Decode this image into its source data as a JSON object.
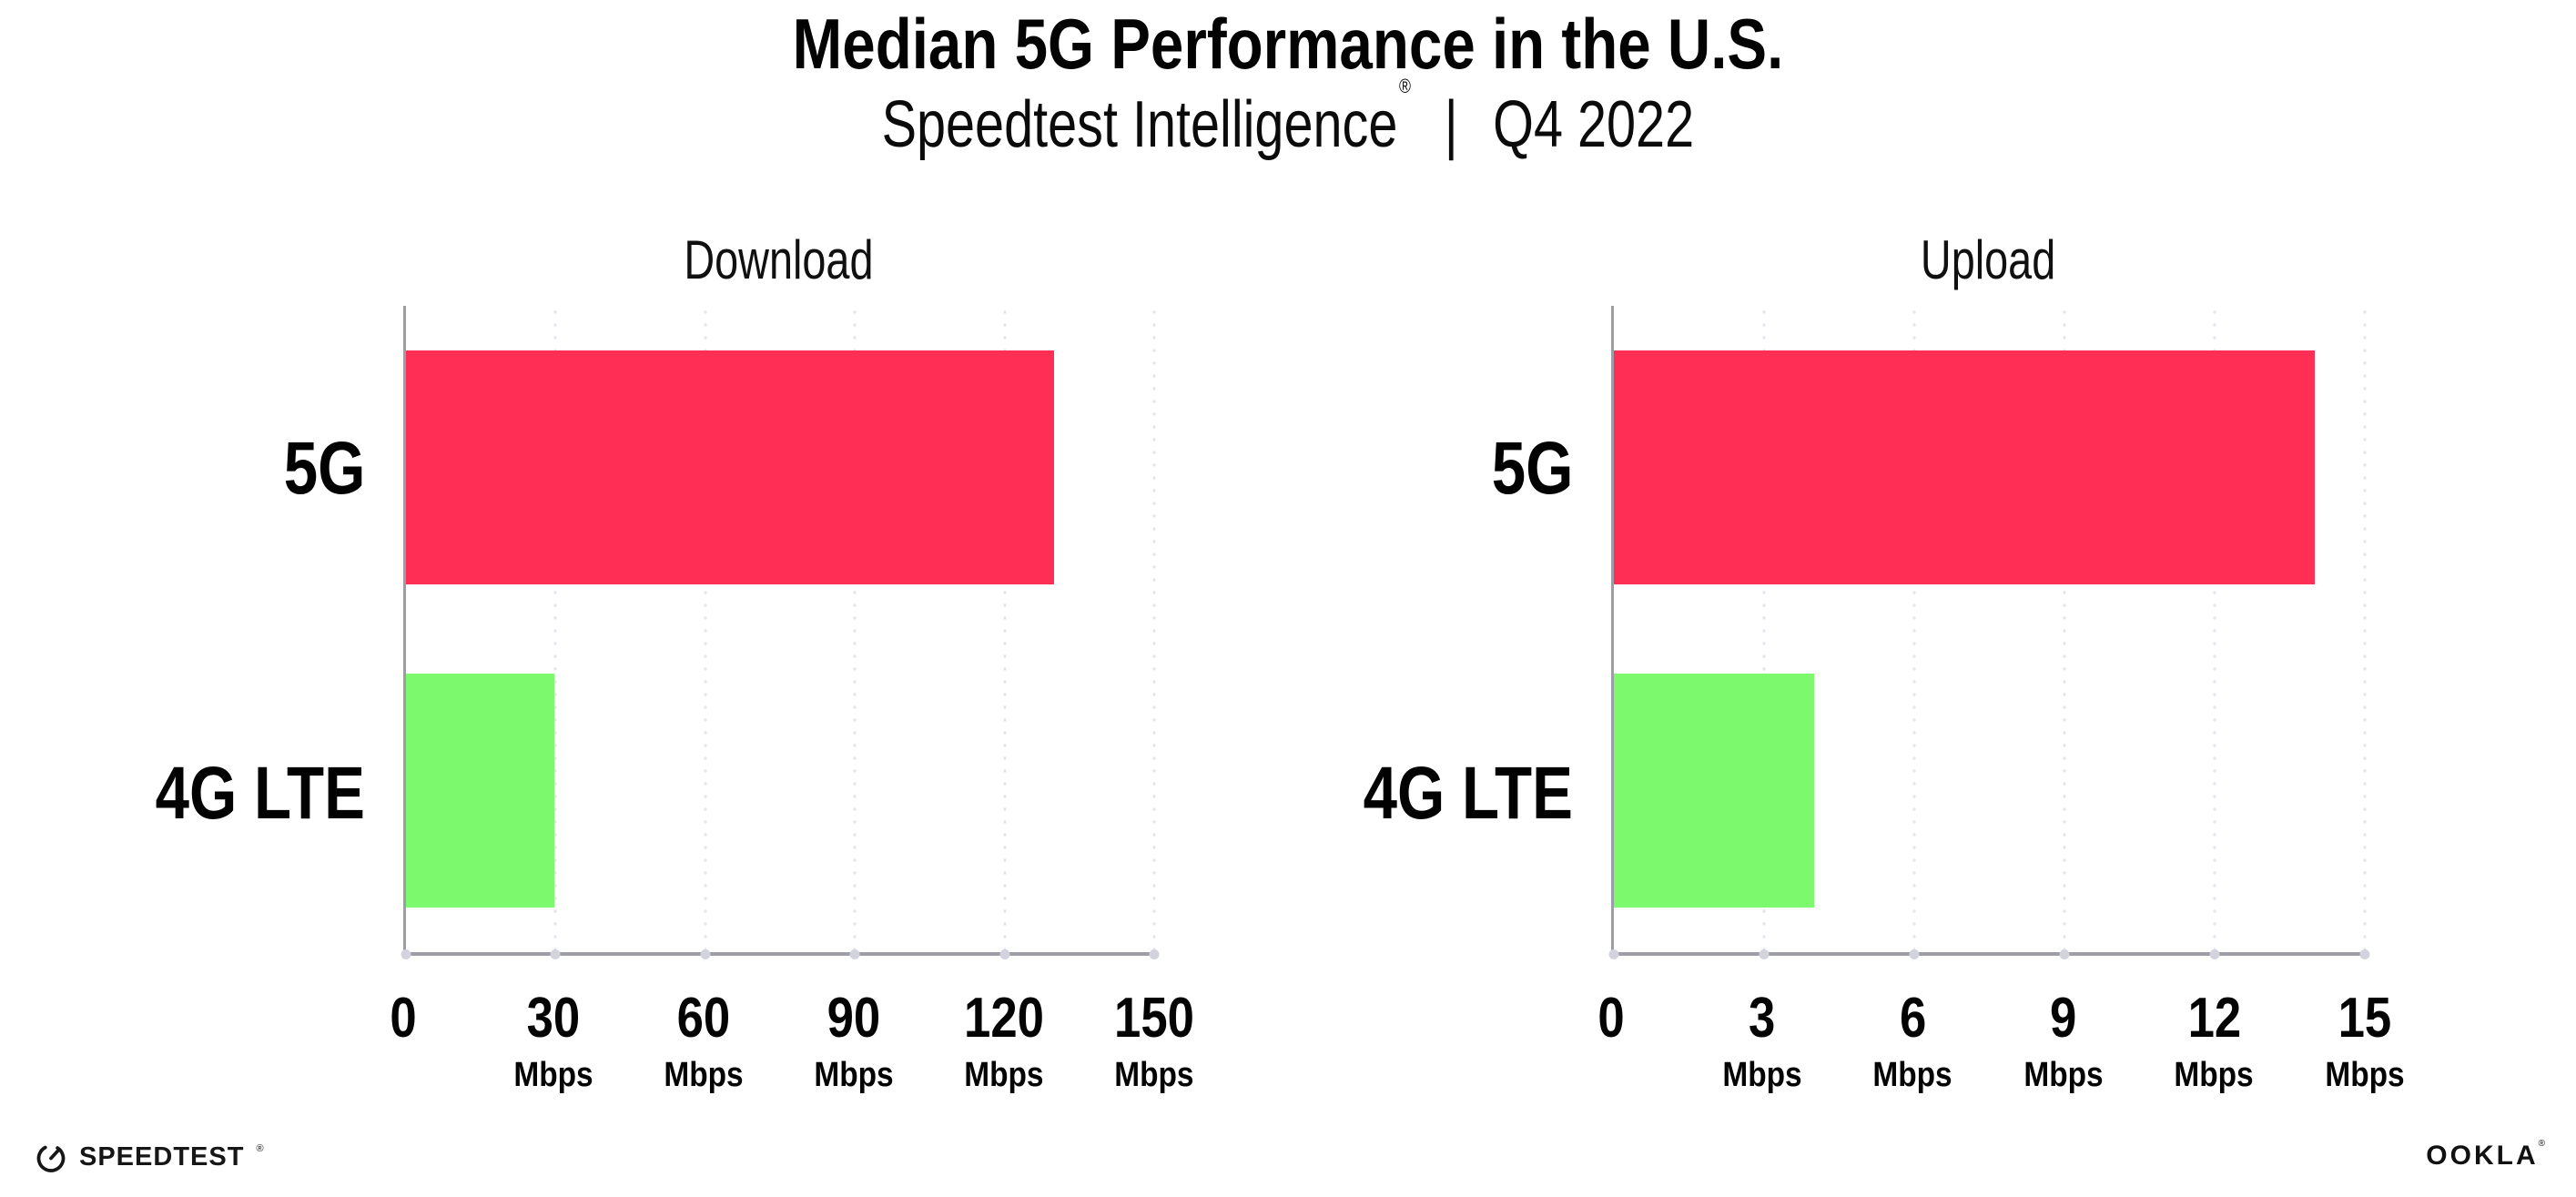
{
  "header": {
    "title": "Median 5G Performance in the U.S.",
    "subtitle_brand": "Speedtest Intelligence",
    "subtitle_reg": "®",
    "subtitle_sep": "|",
    "subtitle_period": "Q4 2022"
  },
  "chart_data": [
    {
      "type": "bar",
      "orientation": "horizontal",
      "title": "Download",
      "categories": [
        "5G",
        "4G LTE"
      ],
      "values": [
        130,
        29.7
      ],
      "unit": "Mbps",
      "xlim": [
        0,
        150
      ],
      "xticks": [
        0,
        30,
        60,
        90,
        120,
        150
      ],
      "bar_colors": [
        "#FF2E55",
        "#7DF96D"
      ],
      "grid": "dotted vertical gridlines at each tick",
      "legend": "none"
    },
    {
      "type": "bar",
      "orientation": "horizontal",
      "title": "Upload",
      "categories": [
        "5G",
        "4G LTE"
      ],
      "values": [
        14,
        4
      ],
      "unit": "Mbps",
      "xlim": [
        0,
        15
      ],
      "xticks": [
        0,
        3,
        6,
        9,
        12,
        15
      ],
      "bar_colors": [
        "#FF2E55",
        "#7DF96D"
      ],
      "grid": "dotted vertical gridlines at each tick",
      "legend": "none"
    }
  ],
  "footer": {
    "speedtest": "SPEEDTEST",
    "speedtest_mark": "®",
    "ookla": "OOKLA",
    "ookla_mark": "®"
  },
  "colors": {
    "bar_5g": "#FF2E55",
    "bar_4g_lte": "#7DF96D",
    "axis": "#9D9DA6",
    "gridline": "#E3E3EE",
    "text": "#000000",
    "background": "#FFFFFF"
  }
}
